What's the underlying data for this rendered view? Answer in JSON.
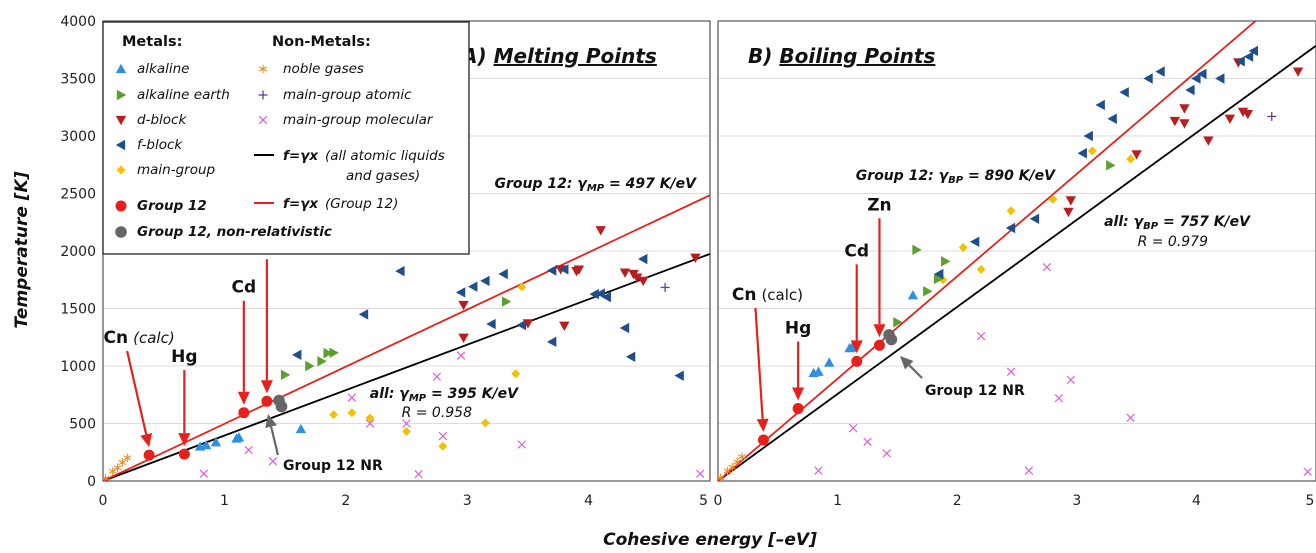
{
  "chart_data": {
    "type": "scatter",
    "xlabel": "Cohesive energy [–eV]",
    "ylabel": "Temperature [K]",
    "xlim": [
      0,
      5
    ],
    "ylim": [
      0,
      4000
    ],
    "xticks": [
      "0",
      "1",
      "2",
      "3",
      "4",
      "5"
    ],
    "yticks": [
      "0",
      "500",
      "1000",
      "1500",
      "2000",
      "2500",
      "3000",
      "3500",
      "4000"
    ],
    "grid": "horizontal",
    "colors": {
      "alkaline": "#2f8fe0",
      "alkaline_earth": "#5aa02c",
      "d_block": "#b81e1e",
      "f_block": "#1f4e8c",
      "main_group": "#f2c200",
      "group12": "#e8201c",
      "group12_nr": "#666666",
      "noble": "#f08a1c",
      "mg_atomic": "#6a3d9a",
      "mg_molecular": "#de5ed8",
      "fit_all": "#000000",
      "fit_g12": "#e8201c"
    },
    "legend": {
      "metals_title": "Metals:",
      "nonmetals_title": "Non-Metals:",
      "alkaline": "alkaline",
      "alkaline_earth": "alkaline earth",
      "d_block": "d-block",
      "f_block": "f-block",
      "main_group": "main-group",
      "group12": "Group 12",
      "group12_nr": "Group 12, non-relativistic",
      "noble": "noble gases",
      "mg_atomic": "main-group atomic",
      "mg_molecular": "main-group molecular",
      "fit_all_f": "f=γx",
      "fit_all_desc1": "(all atomic liquids",
      "fit_all_desc2": "and gases)",
      "fit_g12_f": "f=γx",
      "fit_g12_desc": "(Group 12)"
    },
    "panels": [
      {
        "title": "A) Melting Points",
        "fit_all": {
          "gamma": 395,
          "label_pre": "all: γ",
          "label_sub": "MP",
          "label_post": " = 395 K/eV",
          "r": "R = 0.958"
        },
        "fit_g12": {
          "gamma": 497,
          "label_pre": "Group 12: γ",
          "label_sub": "MP",
          "label_post": " = 497 K/eV"
        },
        "group12": [
          {
            "name": "Cn",
            "sub": "(calc)",
            "x": 0.38,
            "y": 225
          },
          {
            "name": "Hg",
            "sub": "",
            "x": 0.67,
            "y": 234
          },
          {
            "name": "Cd",
            "sub": "",
            "x": 1.16,
            "y": 594
          },
          {
            "name": "Zn",
            "sub": "",
            "x": 1.35,
            "y": 693
          }
        ],
        "group12_nr": [
          {
            "x": 1.45,
            "y": 700
          },
          {
            "x": 1.47,
            "y": 648
          }
        ],
        "nr_label": "Group 12 NR",
        "alkaline": [
          [
            0.8,
            300
          ],
          [
            0.85,
            312
          ],
          [
            0.93,
            337
          ],
          [
            1.1,
            370
          ],
          [
            1.12,
            380
          ],
          [
            1.63,
            453
          ]
        ],
        "alkaline_earth": [
          [
            1.5,
            923
          ],
          [
            1.7,
            1000
          ],
          [
            1.8,
            1041
          ],
          [
            1.85,
            1112
          ],
          [
            1.9,
            1115
          ],
          [
            3.32,
            1560
          ]
        ],
        "d_block": [
          [
            2.97,
            1245
          ],
          [
            2.97,
            1530
          ],
          [
            3.5,
            1370
          ],
          [
            3.77,
            1840
          ],
          [
            3.8,
            1350
          ],
          [
            3.9,
            1825
          ],
          [
            3.92,
            1838
          ],
          [
            4.1,
            2180
          ],
          [
            4.3,
            1812
          ],
          [
            4.37,
            1800
          ],
          [
            4.4,
            1768
          ],
          [
            4.45,
            1740
          ],
          [
            4.88,
            1941
          ]
        ],
        "f_block": [
          [
            1.6,
            1097
          ],
          [
            2.15,
            1449
          ],
          [
            2.45,
            1825
          ],
          [
            2.95,
            1640
          ],
          [
            3.05,
            1690
          ],
          [
            3.15,
            1740
          ],
          [
            3.2,
            1365
          ],
          [
            3.3,
            1800
          ],
          [
            3.45,
            1356
          ],
          [
            3.7,
            1830
          ],
          [
            3.7,
            1210
          ],
          [
            3.8,
            1840
          ],
          [
            4.05,
            1625
          ],
          [
            4.1,
            1630
          ],
          [
            4.15,
            1600
          ],
          [
            4.3,
            1330
          ],
          [
            4.35,
            1080
          ],
          [
            4.45,
            1930
          ],
          [
            4.75,
            916
          ]
        ],
        "main_group": [
          [
            1.9,
            577
          ],
          [
            2.05,
            594
          ],
          [
            2.2,
            548
          ],
          [
            2.5,
            430
          ],
          [
            2.8,
            302
          ],
          [
            3.15,
            505
          ],
          [
            3.4,
            933
          ],
          [
            3.45,
            1687
          ]
        ],
        "noble": [
          [
            0.02,
            24
          ],
          [
            0.08,
            84
          ],
          [
            0.12,
            116
          ],
          [
            0.16,
            161
          ],
          [
            0.2,
            202
          ]
        ],
        "mg_atomic": [
          [
            4.63,
            1683
          ]
        ],
        "mg_molecular": [
          [
            0.83,
            63
          ],
          [
            1.2,
            270
          ],
          [
            1.4,
            172
          ],
          [
            2.05,
            725
          ],
          [
            2.2,
            500
          ],
          [
            2.5,
            500
          ],
          [
            2.6,
            60
          ],
          [
            2.75,
            907
          ],
          [
            2.8,
            390
          ],
          [
            2.95,
            1090
          ],
          [
            3.45,
            317
          ],
          [
            4.92,
            63
          ]
        ]
      },
      {
        "title": "B) Boiling Points",
        "fit_all": {
          "gamma": 757,
          "label_pre": "all: γ",
          "label_sub": "BP",
          "label_post": " = 757 K/eV",
          "r": "R = 0.979"
        },
        "fit_g12": {
          "gamma": 890,
          "label_pre": "Group 12: γ",
          "label_sub": "BP",
          "label_post": " = 890 K/eV"
        },
        "group12": [
          {
            "name": "Cn",
            "sub": "(calc)",
            "x": 0.38,
            "y": 357
          },
          {
            "name": "Hg",
            "sub": "",
            "x": 0.67,
            "y": 630
          },
          {
            "name": "Cd",
            "sub": "",
            "x": 1.16,
            "y": 1040
          },
          {
            "name": "Zn",
            "sub": "",
            "x": 1.35,
            "y": 1180
          }
        ],
        "group12_nr": [
          {
            "x": 1.43,
            "y": 1270
          },
          {
            "x": 1.45,
            "y": 1230
          }
        ],
        "nr_label": "Group 12 NR",
        "alkaline": [
          [
            0.8,
            940
          ],
          [
            0.84,
            950
          ],
          [
            0.93,
            1030
          ],
          [
            1.1,
            1156
          ],
          [
            1.12,
            1160
          ],
          [
            1.63,
            1615
          ]
        ],
        "alkaline_earth": [
          [
            1.5,
            1380
          ],
          [
            1.66,
            2010
          ],
          [
            1.84,
            1757
          ],
          [
            1.9,
            1910
          ],
          [
            3.28,
            2745
          ],
          [
            1.75,
            1650
          ]
        ],
        "d_block": [
          [
            2.95,
            2440
          ],
          [
            2.93,
            2340
          ],
          [
            3.5,
            2840
          ],
          [
            3.82,
            3130
          ],
          [
            3.9,
            3110
          ],
          [
            3.9,
            3240
          ],
          [
            4.1,
            2960
          ],
          [
            4.28,
            3150
          ],
          [
            4.35,
            3640
          ],
          [
            4.39,
            3210
          ],
          [
            4.43,
            3190
          ],
          [
            4.85,
            3560
          ]
        ],
        "f_block": [
          [
            1.85,
            1800
          ],
          [
            2.15,
            2080
          ],
          [
            2.45,
            2200
          ],
          [
            2.65,
            2280
          ],
          [
            3.05,
            2850
          ],
          [
            3.1,
            3000
          ],
          [
            3.2,
            3270
          ],
          [
            3.3,
            3150
          ],
          [
            3.4,
            3380
          ],
          [
            3.6,
            3500
          ],
          [
            3.7,
            3560
          ],
          [
            3.95,
            3400
          ],
          [
            4.0,
            3500
          ],
          [
            4.05,
            3540
          ],
          [
            4.2,
            3500
          ],
          [
            4.37,
            3650
          ],
          [
            4.44,
            3690
          ],
          [
            4.48,
            3740
          ]
        ],
        "main_group": [
          [
            1.88,
            1750
          ],
          [
            2.05,
            2030
          ],
          [
            2.2,
            1840
          ],
          [
            2.45,
            2350
          ],
          [
            2.8,
            2450
          ],
          [
            3.13,
            2870
          ],
          [
            3.45,
            2800
          ]
        ],
        "noble": [
          [
            0.02,
            27
          ],
          [
            0.08,
            87
          ],
          [
            0.12,
            120
          ],
          [
            0.16,
            165
          ],
          [
            0.2,
            211
          ]
        ],
        "mg_atomic": [
          [
            4.63,
            3170
          ]
        ],
        "mg_molecular": [
          [
            0.84,
            90
          ],
          [
            1.13,
            460
          ],
          [
            1.25,
            340
          ],
          [
            1.41,
            240
          ],
          [
            2.2,
            1260
          ],
          [
            2.45,
            950
          ],
          [
            2.6,
            90
          ],
          [
            2.75,
            1860
          ],
          [
            2.85,
            720
          ],
          [
            2.95,
            880
          ],
          [
            3.45,
            550
          ],
          [
            4.93,
            80
          ]
        ]
      }
    ]
  }
}
